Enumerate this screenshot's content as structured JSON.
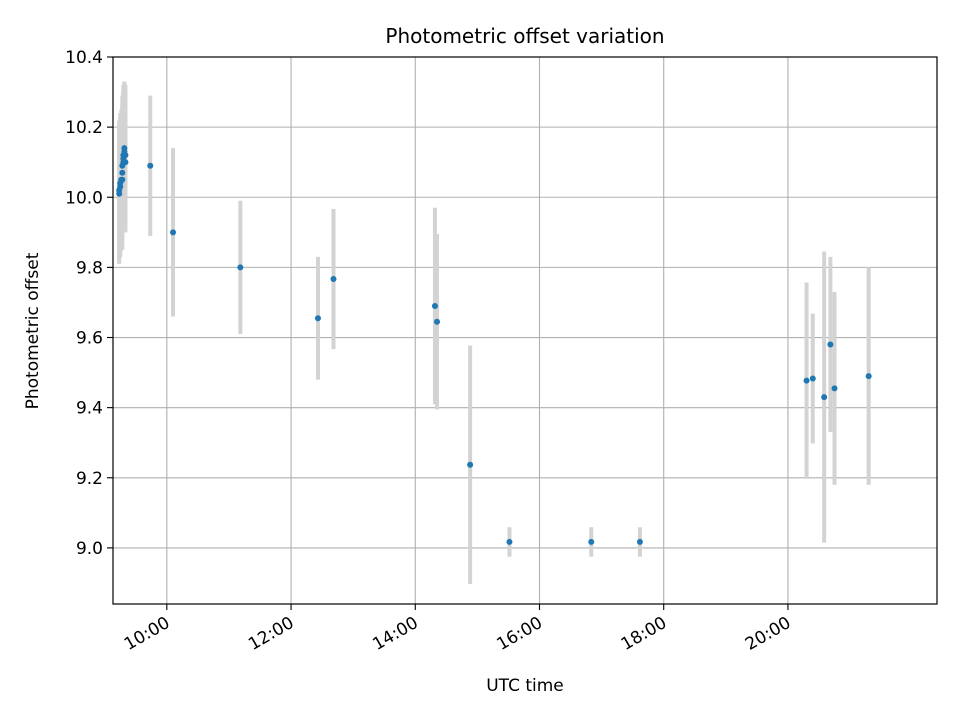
{
  "chart_data": {
    "type": "scatter",
    "title": "Photometric offset variation",
    "xlabel": "UTC time",
    "ylabel": "Photometric offset",
    "x_unit": "UTC time (HH:MM)",
    "xlim": [
      "09:08",
      "22:24"
    ],
    "ylim": [
      8.84,
      10.4
    ],
    "grid": true,
    "x_ticks": [
      "10:00",
      "12:00",
      "14:00",
      "16:00",
      "18:00",
      "20:00"
    ],
    "y_ticks": [
      "9.0",
      "9.2",
      "9.4",
      "9.6",
      "9.8",
      "10.0",
      "10.2",
      "10.4"
    ],
    "colors": {
      "point": "#1f77b4",
      "errorbar": "#d3d3d3",
      "grid": "#b0b0b0"
    },
    "points": [
      {
        "x": "09:14",
        "y": 10.01,
        "err": 0.2
      },
      {
        "x": "09:14",
        "y": 10.02,
        "err": 0.2
      },
      {
        "x": "09:15",
        "y": 10.03,
        "err": 0.2
      },
      {
        "x": "09:15",
        "y": 10.04,
        "err": 0.2
      },
      {
        "x": "09:16",
        "y": 10.05,
        "err": 0.2
      },
      {
        "x": "09:17",
        "y": 10.05,
        "err": 0.2
      },
      {
        "x": "09:17",
        "y": 10.07,
        "err": 0.2
      },
      {
        "x": "09:17",
        "y": 10.09,
        "err": 0.2
      },
      {
        "x": "09:18",
        "y": 10.1,
        "err": 0.2
      },
      {
        "x": "09:18",
        "y": 10.11,
        "err": 0.2
      },
      {
        "x": "09:18",
        "y": 10.12,
        "err": 0.2
      },
      {
        "x": "09:19",
        "y": 10.13,
        "err": 0.2
      },
      {
        "x": "09:19",
        "y": 10.14,
        "err": 0.19
      },
      {
        "x": "09:20",
        "y": 10.1,
        "err": 0.2
      },
      {
        "x": "09:20",
        "y": 10.12,
        "err": 0.2
      },
      {
        "x": "09:44",
        "y": 10.09,
        "err": 0.2
      },
      {
        "x": "10:06",
        "y": 9.9,
        "err": 0.24
      },
      {
        "x": "11:11",
        "y": 9.8,
        "err": 0.19
      },
      {
        "x": "12:26",
        "y": 9.655,
        "err": 0.175
      },
      {
        "x": "12:41",
        "y": 9.767,
        "err": 0.2
      },
      {
        "x": "14:19",
        "y": 9.69,
        "err": 0.28
      },
      {
        "x": "14:21",
        "y": 9.645,
        "err": 0.25
      },
      {
        "x": "14:53",
        "y": 9.237,
        "err": 0.34
      },
      {
        "x": "15:31",
        "y": 9.017,
        "err": 0.042
      },
      {
        "x": "16:50",
        "y": 9.017,
        "err": 0.042
      },
      {
        "x": "17:37",
        "y": 9.017,
        "err": 0.042
      },
      {
        "x": "20:18",
        "y": 9.477,
        "err": 0.28
      },
      {
        "x": "20:24",
        "y": 9.483,
        "err": 0.185
      },
      {
        "x": "20:35",
        "y": 9.43,
        "err": 0.415
      },
      {
        "x": "20:41",
        "y": 9.58,
        "err": 0.25
      },
      {
        "x": "20:45",
        "y": 9.455,
        "err": 0.275
      },
      {
        "x": "21:18",
        "y": 9.49,
        "err": 0.31
      }
    ]
  }
}
